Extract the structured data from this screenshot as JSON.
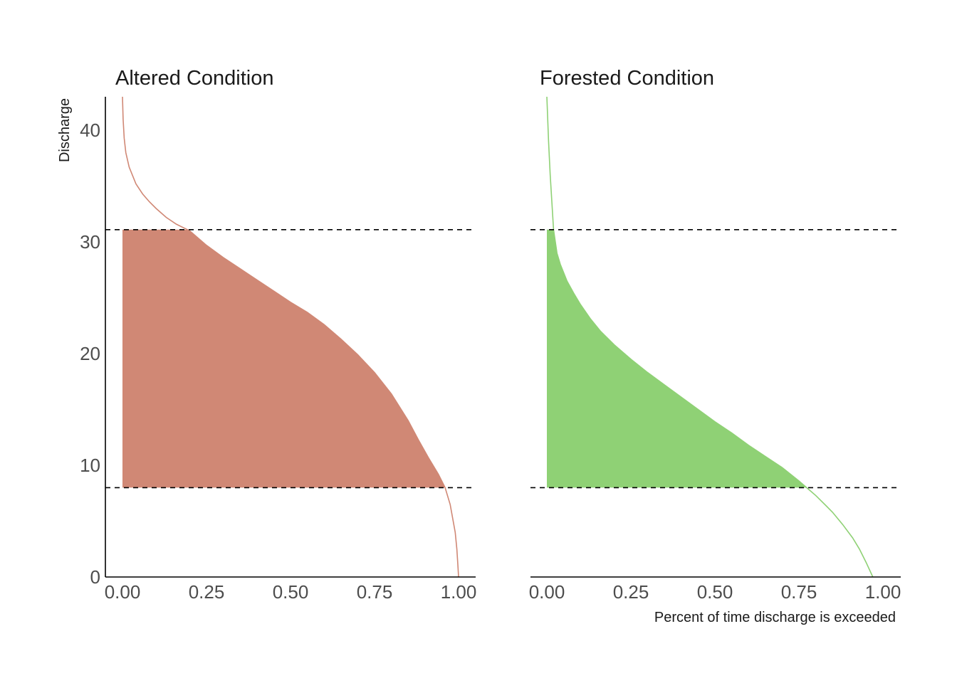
{
  "chart_data": [
    {
      "type": "area",
      "title": "Altered Condition",
      "ylabel": "Discharge",
      "xlabel": "",
      "xlim": [
        0,
        1
      ],
      "ylim": [
        0,
        43
      ],
      "x_ticks": [
        "0.00",
        "0.25",
        "0.50",
        "0.75",
        "1.00"
      ],
      "y_ticks": [
        "0",
        "10",
        "20",
        "30",
        "40"
      ],
      "color": "#d08875",
      "reference_lines": [
        31.1,
        8.0
      ],
      "shaded_between": [
        8.0,
        31.1
      ],
      "curve": {
        "x": [
          0.0,
          0.002,
          0.005,
          0.01,
          0.02,
          0.04,
          0.06,
          0.08,
          0.1,
          0.13,
          0.16,
          0.2,
          0.25,
          0.3,
          0.35,
          0.4,
          0.45,
          0.5,
          0.55,
          0.6,
          0.65,
          0.7,
          0.75,
          0.8,
          0.85,
          0.88,
          0.91,
          0.94,
          0.96,
          0.975,
          0.99,
          0.995,
          0.998,
          1.0
        ],
        "y": [
          43.0,
          41.0,
          39.3,
          38.0,
          36.7,
          35.2,
          34.3,
          33.6,
          33.0,
          32.2,
          31.6,
          31.0,
          29.7,
          28.6,
          27.6,
          26.6,
          25.6,
          24.6,
          23.7,
          22.6,
          21.3,
          19.9,
          18.3,
          16.4,
          14.0,
          12.3,
          10.7,
          9.2,
          8.0,
          6.5,
          4.0,
          2.5,
          1.0,
          0.0
        ]
      }
    },
    {
      "type": "area",
      "title": "Forested Condition",
      "ylabel": "",
      "xlabel": "Percent of time discharge is exceeded",
      "xlim": [
        0,
        1
      ],
      "ylim": [
        0,
        43
      ],
      "x_ticks": [
        "0.00",
        "0.25",
        "0.50",
        "0.75",
        "1.00"
      ],
      "y_ticks": [],
      "color": "#8fd175",
      "reference_lines": [
        31.1,
        8.0
      ],
      "shaded_between": [
        8.0,
        31.1
      ],
      "curve": {
        "x": [
          0.0,
          0.005,
          0.01,
          0.015,
          0.02,
          0.03,
          0.04,
          0.06,
          0.08,
          0.1,
          0.13,
          0.16,
          0.2,
          0.25,
          0.3,
          0.35,
          0.4,
          0.45,
          0.5,
          0.55,
          0.6,
          0.65,
          0.7,
          0.75,
          0.8,
          0.83,
          0.85,
          0.88,
          0.91,
          0.93,
          0.95,
          0.97
        ],
        "y": [
          43.0,
          39.0,
          36.0,
          33.5,
          31.1,
          29.0,
          28.0,
          26.5,
          25.4,
          24.4,
          23.1,
          22.0,
          20.8,
          19.5,
          18.3,
          17.2,
          16.1,
          15.0,
          13.9,
          12.9,
          11.8,
          10.8,
          9.8,
          8.6,
          7.3,
          6.4,
          5.8,
          4.7,
          3.5,
          2.5,
          1.3,
          0.0
        ]
      }
    }
  ]
}
